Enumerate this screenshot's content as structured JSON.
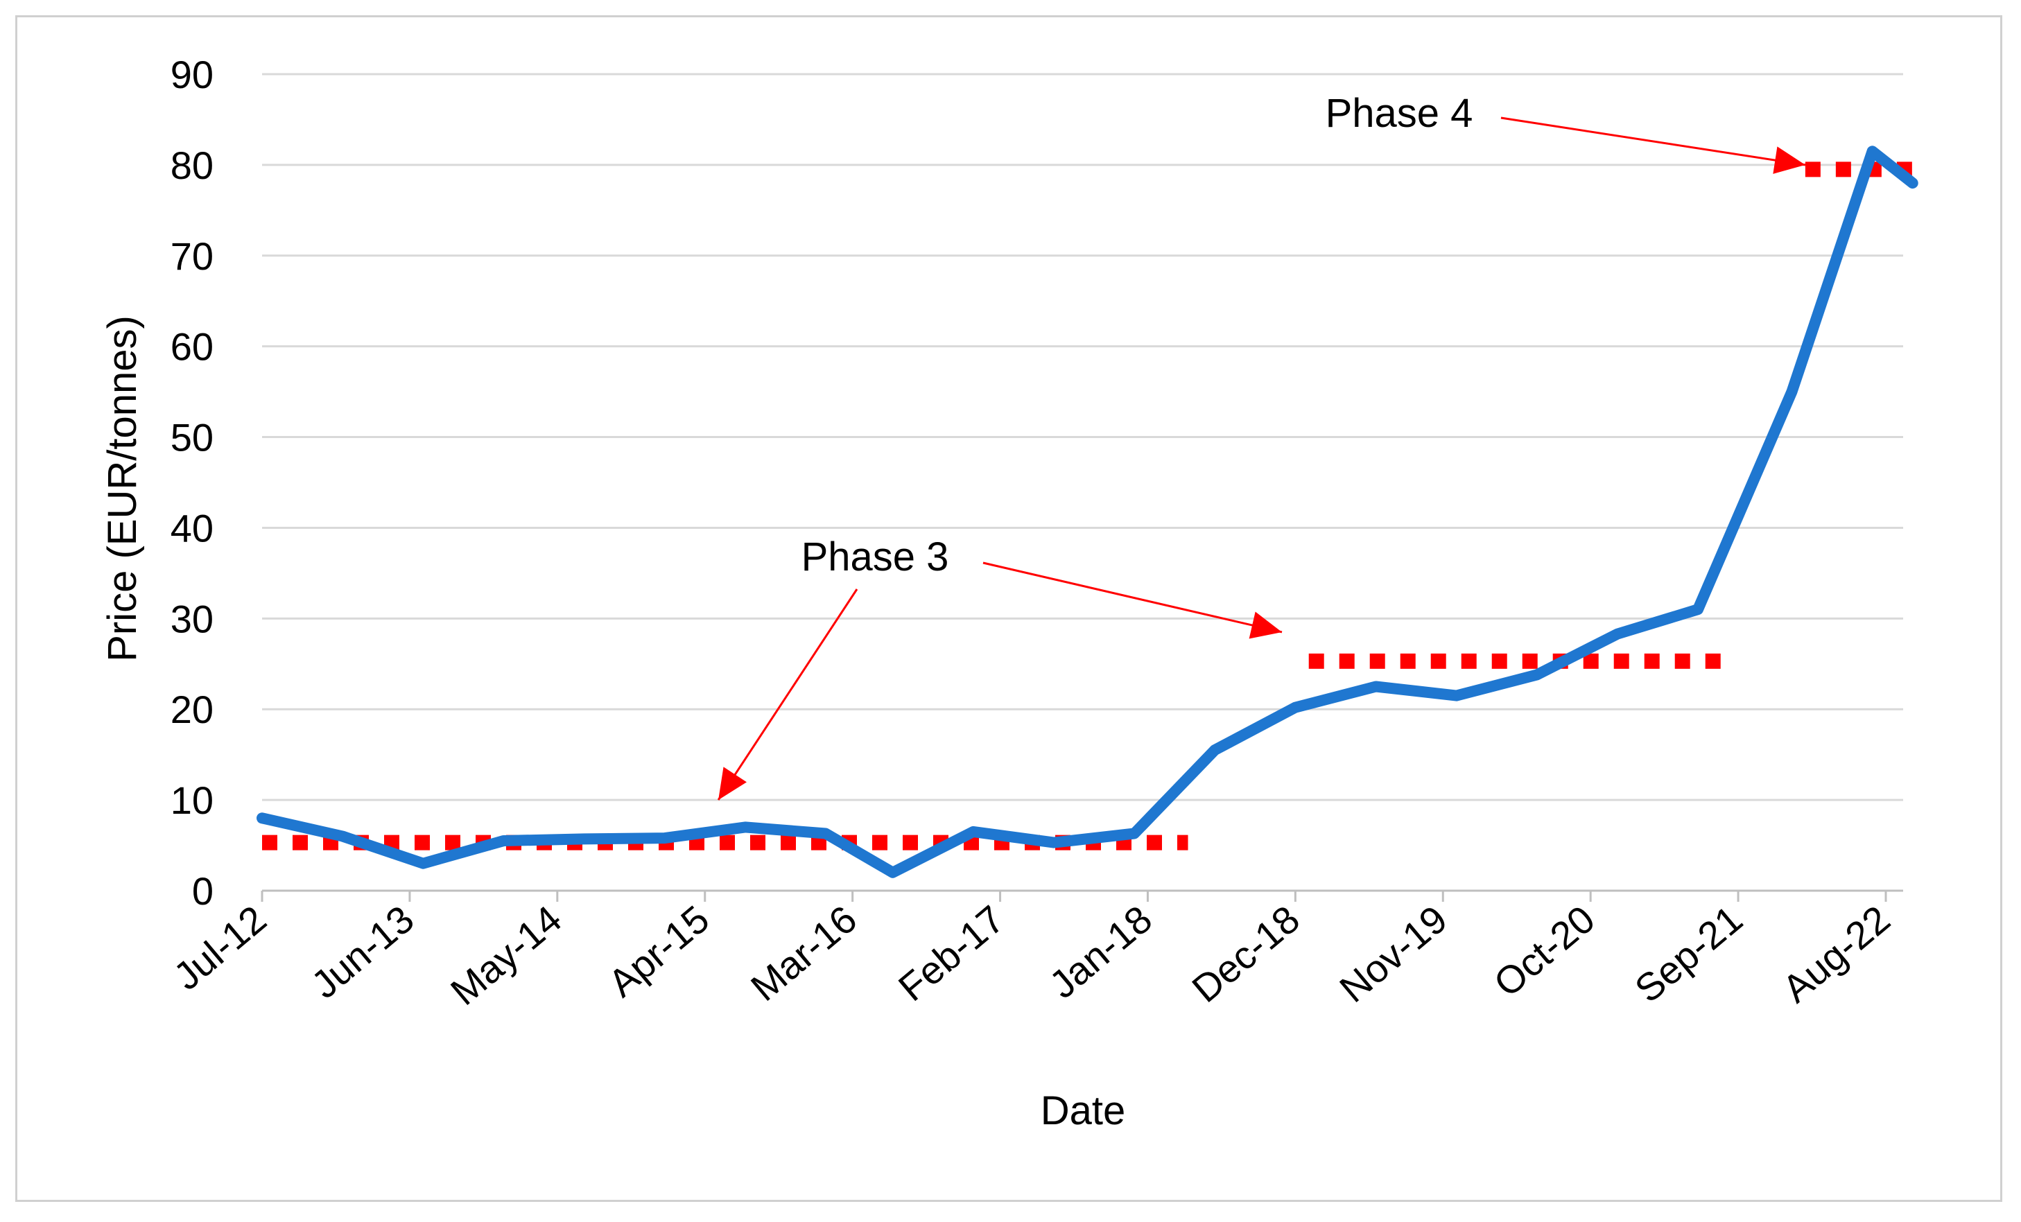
{
  "chart_data": {
    "type": "line",
    "title": "",
    "xlabel": "Date",
    "ylabel": "Price (EUR/tonnes)",
    "ylim": [
      0,
      90
    ],
    "yticks": [
      0,
      10,
      20,
      30,
      40,
      50,
      60,
      70,
      80,
      90
    ],
    "grid": true,
    "xrange": [
      "2012-07",
      "2022-10"
    ],
    "xtick_labels": [
      {
        "label": "Jul-12",
        "date": "2012-07"
      },
      {
        "label": "Jun-13",
        "date": "2013-06"
      },
      {
        "label": "May-14",
        "date": "2014-05"
      },
      {
        "label": "Apr-15",
        "date": "2015-04"
      },
      {
        "label": "Mar-16",
        "date": "2016-03"
      },
      {
        "label": "Feb-17",
        "date": "2017-02"
      },
      {
        "label": "Jan-18",
        "date": "2018-01"
      },
      {
        "label": "Dec-18",
        "date": "2018-12"
      },
      {
        "label": "Nov-19",
        "date": "2019-11"
      },
      {
        "label": "Oct-20",
        "date": "2020-10"
      },
      {
        "label": "Sep-21",
        "date": "2021-09"
      },
      {
        "label": "Aug-22",
        "date": "2022-08"
      }
    ],
    "series": [
      {
        "color": "#1f77d0",
        "points": [
          {
            "x": "2012-07",
            "y": 8.0
          },
          {
            "x": "2013-01",
            "y": 6.0
          },
          {
            "x": "2013-07",
            "y": 3.0
          },
          {
            "x": "2014-01",
            "y": 5.5
          },
          {
            "x": "2014-07",
            "y": 5.7
          },
          {
            "x": "2015-01",
            "y": 5.8
          },
          {
            "x": "2015-07",
            "y": 7.0
          },
          {
            "x": "2016-01",
            "y": 6.3
          },
          {
            "x": "2016-06",
            "y": 2.0
          },
          {
            "x": "2016-12",
            "y": 6.5
          },
          {
            "x": "2017-06",
            "y": 5.3
          },
          {
            "x": "2017-12",
            "y": 6.3
          },
          {
            "x": "2018-06",
            "y": 15.5
          },
          {
            "x": "2018-12",
            "y": 20.2
          },
          {
            "x": "2019-06",
            "y": 22.5
          },
          {
            "x": "2019-12",
            "y": 21.5
          },
          {
            "x": "2020-06",
            "y": 23.8
          },
          {
            "x": "2020-12",
            "y": 28.3
          },
          {
            "x": "2021-06",
            "y": 31.0
          },
          {
            "x": "2022-01",
            "y": 55.0
          },
          {
            "x": "2022-07",
            "y": 81.5
          },
          {
            "x": "2022-10",
            "y": 78.0
          }
        ]
      }
    ],
    "reference_lines": [
      {
        "color": "#ff0000",
        "style": "dotted",
        "y": 5.3,
        "x_from": "2012-07",
        "x_to": "2018-04"
      },
      {
        "color": "#ff0000",
        "style": "dotted",
        "y": 25.3,
        "x_from": "2019-01",
        "x_to": "2021-08"
      },
      {
        "color": "#ff0000",
        "style": "dotted",
        "y": 79.5,
        "x_from": "2022-02",
        "x_to": "2022-10"
      }
    ],
    "annotations": [
      {
        "text": "Phase 3",
        "arrows_to": [
          {
            "x": "2015-05",
            "y": 10
          },
          {
            "x": "2018-11",
            "y": 28.5
          }
        ]
      },
      {
        "text": "Phase 4",
        "arrows_to": [
          {
            "x": "2022-02",
            "y": 80
          }
        ]
      }
    ]
  }
}
